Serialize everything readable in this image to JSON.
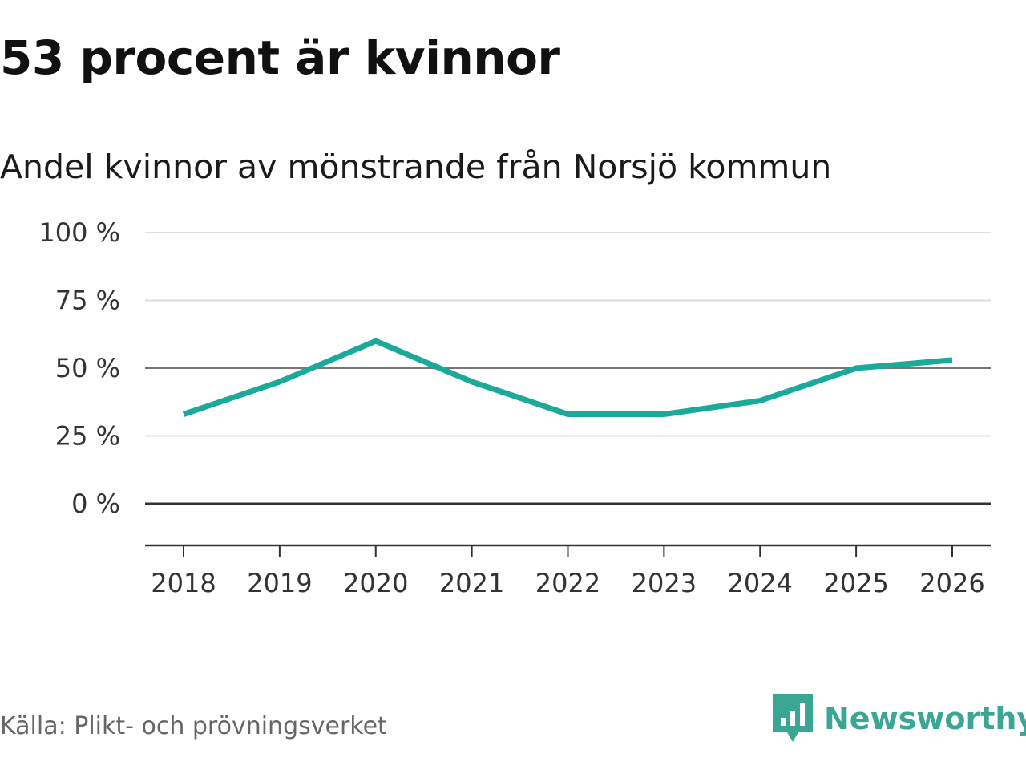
{
  "header": {
    "title": "53 procent är kvinnor",
    "subtitle": "Andel kvinnor av mönstrande från Norsjö kommun"
  },
  "footer": {
    "source": "Källa: Plikt- och prövningsverket",
    "brand": "Newsworthy"
  },
  "colors": {
    "line": "#1aa99a",
    "brand": "#3aa693",
    "gridline": "#dddddd",
    "zero_line": "#333333",
    "reference_line": "#777777"
  },
  "icons": {
    "brand_logo": "newsworthy-chart-bubble-icon"
  },
  "chart_data": {
    "type": "line",
    "title": "53 procent är kvinnor",
    "subtitle": "Andel kvinnor av mönstrande från Norsjö kommun",
    "xlabel": "",
    "ylabel": "",
    "x": [
      "2018",
      "2019",
      "2020",
      "2021",
      "2022",
      "2023",
      "2024",
      "2025",
      "2026"
    ],
    "series": [
      {
        "values": [
          33,
          45,
          60,
          45,
          33,
          33,
          38,
          50,
          53
        ]
      }
    ],
    "ylim": [
      -15,
      100
    ],
    "yticks": [
      0,
      25,
      50,
      75,
      100
    ],
    "ytick_labels": [
      "0 %",
      "25 %",
      "50 %",
      "75 %",
      "100 %"
    ],
    "reference_line": 50,
    "grid": true,
    "legend": "none"
  }
}
